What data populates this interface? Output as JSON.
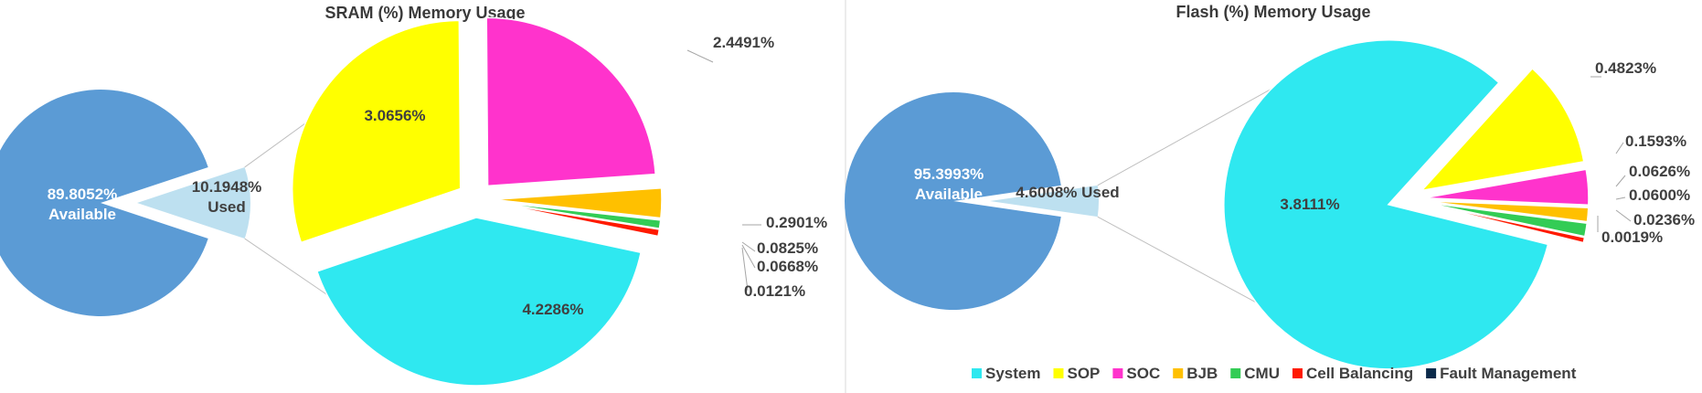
{
  "chart_data": [
    {
      "type": "pie",
      "subtype": "pie-of-pie",
      "title": "SRAM (%) Memory Usage",
      "primary": [
        {
          "label": "Available",
          "value": 89.8052,
          "display": "89.8052%",
          "color": "#5b9bd5"
        },
        {
          "label": "Used",
          "value": 10.1948,
          "display": "10.1948%",
          "color": "#bde0f0"
        }
      ],
      "secondary": [
        {
          "name": "System",
          "value": 4.2286,
          "display": "4.2286%",
          "color": "#2fe8f0"
        },
        {
          "name": "SOP",
          "value": 3.0656,
          "display": "3.0656%",
          "color": "#ffff00"
        },
        {
          "name": "SOC",
          "value": 2.4491,
          "display": "2.4491%",
          "color": "#ff33cc"
        },
        {
          "name": "BJB",
          "value": 0.2901,
          "display": "0.2901%",
          "color": "#ffc000"
        },
        {
          "name": "CMU",
          "value": 0.0825,
          "display": "0.0825%",
          "color": "#33cc55"
        },
        {
          "name": "Cell Balancing",
          "value": 0.0668,
          "display": "0.0668%",
          "color": "#ff1a00"
        },
        {
          "name": "Fault Management",
          "value": 0.0121,
          "display": "0.0121%",
          "color": "#0b2a4a"
        }
      ]
    },
    {
      "type": "pie",
      "subtype": "pie-of-pie",
      "title": "Flash (%) Memory Usage",
      "primary": [
        {
          "label": "Available",
          "value": 95.3993,
          "display": "95.3993%",
          "color": "#5b9bd5"
        },
        {
          "label": "Used",
          "value": 4.6008,
          "display": "4.6008%",
          "color": "#bde0f0"
        }
      ],
      "secondary": [
        {
          "name": "System",
          "value": 3.8111,
          "display": "3.8111%",
          "color": "#2fe8f0"
        },
        {
          "name": "SOP",
          "value": 0.4823,
          "display": "0.4823%",
          "color": "#ffff00"
        },
        {
          "name": "SOC",
          "value": 0.1593,
          "display": "0.1593%",
          "color": "#ff33cc"
        },
        {
          "name": "BJB",
          "value": 0.0626,
          "display": "0.0626%",
          "color": "#ffc000"
        },
        {
          "name": "CMU",
          "value": 0.06,
          "display": "0.0600%",
          "color": "#33cc55"
        },
        {
          "name": "Cell Balancing",
          "value": 0.0236,
          "display": "0.0236%",
          "color": "#ff1a00"
        },
        {
          "name": "Fault Management",
          "value": 0.0019,
          "display": "0.0019%",
          "color": "#0b2a4a"
        }
      ],
      "legend": "bottom"
    }
  ],
  "legend": {
    "items": [
      {
        "name": "System",
        "color": "#2fe8f0"
      },
      {
        "name": "SOP",
        "color": "#ffff00"
      },
      {
        "name": "SOC",
        "color": "#ff33cc"
      },
      {
        "name": "BJB",
        "color": "#ffc000"
      },
      {
        "name": "CMU",
        "color": "#33cc55"
      },
      {
        "name": "Cell Balancing",
        "color": "#ff1a00"
      },
      {
        "name": "Fault Management",
        "color": "#0b2a4a"
      }
    ]
  }
}
